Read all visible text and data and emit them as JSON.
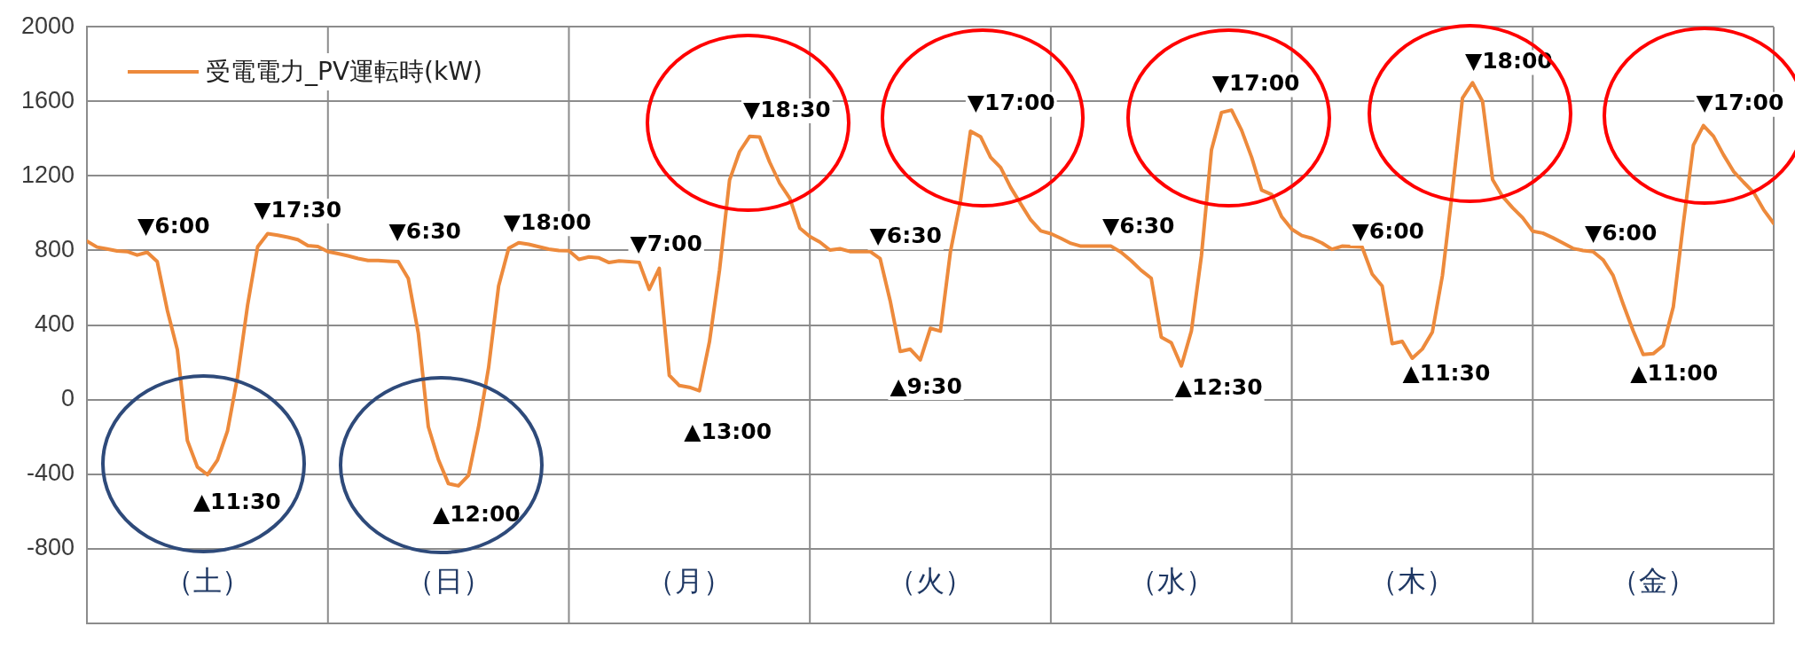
{
  "chart_data": {
    "type": "line",
    "categories": [
      null,
      null,
      null,
      null,
      null,
      null,
      null,
      null,
      null,
      null,
      null,
      null,
      "（土）",
      null,
      null,
      null,
      null,
      null,
      null,
      null,
      null,
      null,
      null,
      null,
      null,
      null,
      null,
      null,
      null,
      null,
      null,
      null,
      null,
      null,
      null,
      null,
      "（日）",
      null,
      null,
      null,
      null,
      null,
      null,
      null,
      null,
      null,
      null,
      null,
      null,
      null,
      null,
      null,
      null,
      null,
      null,
      null,
      null,
      null,
      null,
      null,
      "（月）",
      null,
      null,
      null,
      null,
      null,
      null,
      null,
      null,
      null,
      null,
      null,
      null,
      null,
      null,
      null,
      null,
      null,
      null,
      null,
      null,
      null,
      null,
      null,
      "（火）",
      null,
      null,
      null,
      null,
      null,
      null,
      null,
      null,
      null,
      null,
      null,
      null,
      null,
      null,
      null,
      null,
      null,
      null,
      null,
      null,
      null,
      null,
      null,
      "（水）",
      null,
      null,
      null,
      null,
      null,
      null,
      null,
      null,
      null,
      null,
      null,
      null,
      null,
      null,
      null,
      null,
      null,
      null,
      null,
      null,
      null,
      null,
      null,
      "（木）",
      null,
      null,
      null,
      null,
      null,
      null,
      null,
      null,
      null,
      null,
      null,
      null,
      null,
      null,
      null,
      null,
      null,
      null,
      null,
      null,
      null,
      null,
      null,
      "（金）",
      null,
      null,
      null,
      null,
      null,
      null,
      null,
      null,
      null,
      null,
      null,
      null
    ],
    "series": [
      {
        "name": "受電電力_PV運転時(kW)",
        "color": "#ed8a3c",
        "values": [
          850,
          818,
          808,
          797,
          794,
          775,
          790,
          740,
          480,
          268,
          -220,
          -362,
          -403,
          -325,
          -168,
          122,
          507,
          820,
          890,
          882,
          871,
          858,
          826,
          821,
          794,
          783,
          771,
          757,
          746,
          746,
          743,
          740,
          650,
          357,
          -146,
          -322,
          -451,
          -463,
          -407,
          -147,
          171,
          609,
          811,
          841,
          833,
          820,
          807,
          800,
          798,
          752,
          765,
          760,
          735,
          744,
          740,
          736,
          591,
          704,
          130,
          75,
          66,
          47,
          310,
          694,
          1177,
          1330,
          1412,
          1409,
          1273,
          1160,
          1080,
          920,
          875,
          845,
          802,
          809,
          794,
          794,
          794,
          756,
          530,
          258,
          270,
          213,
          382,
          367,
          793,
          1066,
          1440,
          1410,
          1300,
          1245,
          1138,
          1050,
          964,
          905,
          890,
          865,
          838,
          823,
          823,
          823,
          823,
          790,
          745,
          693,
          651,
          335,
          305,
          180,
          368,
          771,
          1340,
          1540,
          1553,
          1445,
          1300,
          1124,
          1100,
          980,
          914,
          880,
          865,
          840,
          806,
          823,
          821,
          819,
          674,
          609,
          300,
          312,
          222,
          271,
          362,
          664,
          1120,
          1617,
          1700,
          1600,
          1180,
          1089,
          1029,
          975,
          903,
          893,
          868,
          840,
          811,
          800,
          794,
          750,
          666,
          513,
          369,
          242,
          246,
          290,
          497,
          945,
          1365,
          1470,
          1413,
          1313,
          1224,
          1166,
          1111,
          1018,
          945
        ]
      }
    ],
    "ylim": [
      -1200,
      2000
    ],
    "yticks": [
      {
        "value": -1200,
        "label": null
      },
      -800,
      -400,
      0,
      400,
      800,
      1200,
      1600,
      2000
    ],
    "grid": true,
    "legend": "top left",
    "marker": "none",
    "line_style": "solid",
    "annotations": [
      "▼6:00",
      "▼17:30",
      "▲11:30",
      "▼6:30",
      "▼18:00",
      "▲12:00",
      "▼7:00",
      "▲13:00",
      "▼18:30",
      "▼6:30",
      "▲9:30",
      "▼17:00",
      "▼6:30",
      "▲12:30",
      "▼17:00",
      "▼6:00",
      "▲11:30",
      "▼18:00",
      "▼6:00",
      "▲11:00",
      "▼17:00"
    ]
  }
}
